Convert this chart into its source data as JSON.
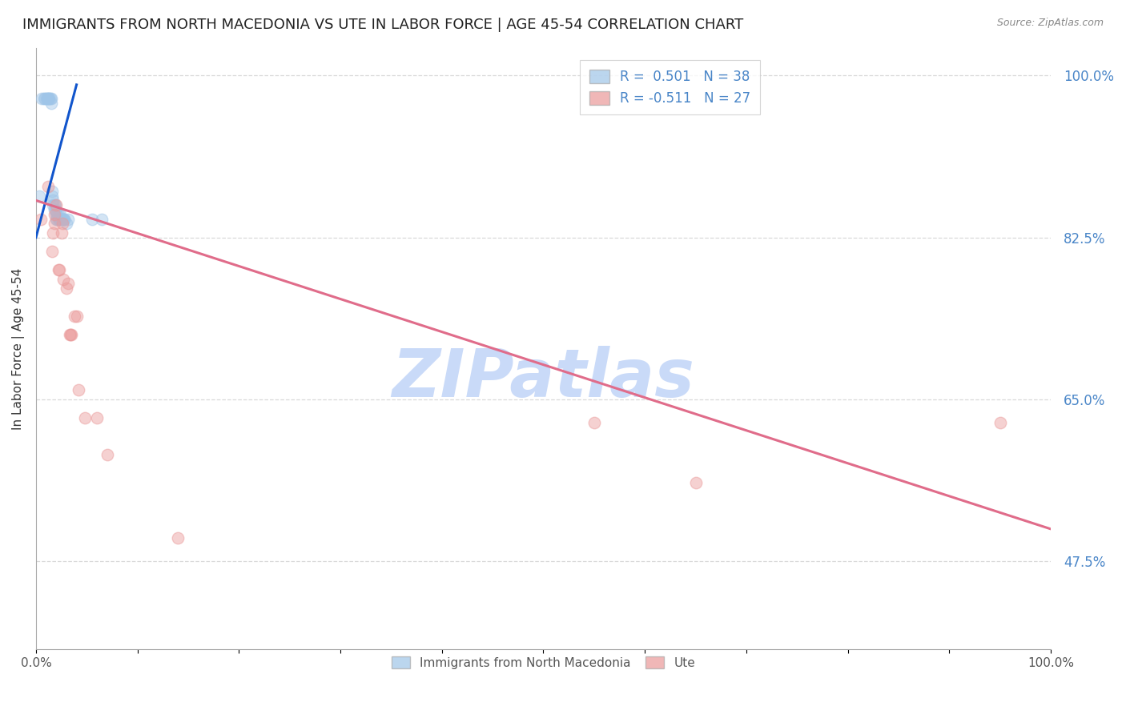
{
  "title": "IMMIGRANTS FROM NORTH MACEDONIA VS UTE IN LABOR FORCE | AGE 45-54 CORRELATION CHART",
  "source": "Source: ZipAtlas.com",
  "ylabel": "In Labor Force | Age 45-54",
  "y_tick_labels_right": [
    "100.0%",
    "82.5%",
    "65.0%",
    "47.5%"
  ],
  "y_tick_positions_right": [
    1.0,
    0.825,
    0.65,
    0.475
  ],
  "blue_scatter_x": [
    0.003,
    0.006,
    0.008,
    0.009,
    0.01,
    0.011,
    0.012,
    0.013,
    0.013,
    0.014,
    0.015,
    0.015,
    0.016,
    0.016,
    0.017,
    0.017,
    0.018,
    0.018,
    0.019,
    0.019,
    0.02,
    0.02,
    0.021,
    0.021,
    0.022,
    0.022,
    0.023,
    0.024,
    0.024,
    0.025,
    0.026,
    0.027,
    0.028,
    0.028,
    0.03,
    0.032,
    0.055,
    0.065
  ],
  "blue_scatter_y": [
    0.87,
    0.975,
    0.975,
    0.975,
    0.975,
    0.975,
    0.975,
    0.975,
    0.975,
    0.975,
    0.975,
    0.97,
    0.87,
    0.875,
    0.86,
    0.865,
    0.855,
    0.86,
    0.855,
    0.86,
    0.845,
    0.85,
    0.845,
    0.85,
    0.845,
    0.85,
    0.845,
    0.845,
    0.85,
    0.845,
    0.845,
    0.845,
    0.845,
    0.845,
    0.84,
    0.845,
    0.845,
    0.845
  ],
  "pink_scatter_x": [
    0.005,
    0.012,
    0.016,
    0.017,
    0.018,
    0.018,
    0.02,
    0.022,
    0.023,
    0.025,
    0.026,
    0.027,
    0.03,
    0.032,
    0.033,
    0.034,
    0.035,
    0.038,
    0.04,
    0.042,
    0.048,
    0.06,
    0.07,
    0.14,
    0.55,
    0.65,
    0.95
  ],
  "pink_scatter_y": [
    0.845,
    0.88,
    0.81,
    0.83,
    0.84,
    0.85,
    0.86,
    0.79,
    0.79,
    0.83,
    0.84,
    0.78,
    0.77,
    0.775,
    0.72,
    0.72,
    0.72,
    0.74,
    0.74,
    0.66,
    0.63,
    0.63,
    0.59,
    0.5,
    0.625,
    0.56,
    0.625
  ],
  "blue_line_x": [
    0.0,
    0.04
  ],
  "blue_line_y": [
    0.825,
    0.99
  ],
  "pink_line_x": [
    0.0,
    1.0
  ],
  "pink_line_y": [
    0.865,
    0.51
  ],
  "xlim": [
    0.0,
    1.0
  ],
  "ylim": [
    0.38,
    1.03
  ],
  "background_color": "#ffffff",
  "grid_color": "#d9d9d9",
  "title_fontsize": 13,
  "axis_label_fontsize": 11,
  "tick_fontsize": 10,
  "scatter_size": 110,
  "scatter_alpha": 0.45,
  "blue_color": "#9fc5e8",
  "pink_color": "#ea9999",
  "blue_line_color": "#1155cc",
  "pink_line_color": "#e06c8a",
  "watermark_color": "#c9daf8",
  "watermark_fontsize": 60
}
